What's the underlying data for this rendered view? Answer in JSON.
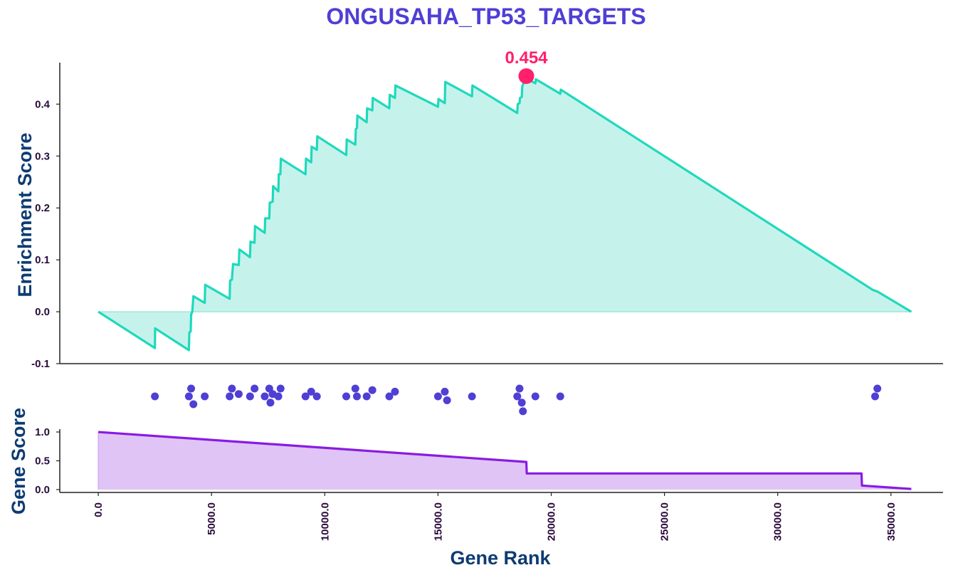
{
  "chart_data": {
    "type": "line",
    "title": "ONGUSAHA_TP53_TARGETS",
    "colors": {
      "title": "#4f3fd4",
      "es_line": "#1fd9bc",
      "es_fill": "#c5f3ec",
      "peak": "#ff1f6a",
      "hits": "#4f3fd4",
      "score_line": "#8a1be0",
      "score_fill": "#e0c4f6",
      "axis": "#222222"
    },
    "enrichment": {
      "ylabel": "Enrichment Score",
      "ylim": [
        -0.1,
        0.48
      ],
      "yticks": [
        "-0.1",
        "0.0",
        "0.1",
        "0.2",
        "0.3",
        "0.4"
      ],
      "points": [
        [
          0,
          0.0
        ],
        [
          2500,
          -0.07
        ],
        [
          2510,
          -0.032
        ],
        [
          4000,
          -0.074
        ],
        [
          4020,
          -0.04
        ],
        [
          4080,
          -0.038
        ],
        [
          4100,
          -0.005
        ],
        [
          4150,
          0.0
        ],
        [
          4200,
          0.03
        ],
        [
          4700,
          0.017
        ],
        [
          4720,
          0.052
        ],
        [
          5800,
          0.025
        ],
        [
          5820,
          0.06
        ],
        [
          5900,
          0.062
        ],
        [
          5950,
          0.092
        ],
        [
          6200,
          0.09
        ],
        [
          6230,
          0.12
        ],
        [
          6700,
          0.105
        ],
        [
          6720,
          0.135
        ],
        [
          6900,
          0.133
        ],
        [
          6920,
          0.165
        ],
        [
          7350,
          0.152
        ],
        [
          7370,
          0.18
        ],
        [
          7550,
          0.18
        ],
        [
          7570,
          0.21
        ],
        [
          7700,
          0.212
        ],
        [
          7720,
          0.242
        ],
        [
          7950,
          0.232
        ],
        [
          7970,
          0.265
        ],
        [
          8040,
          0.265
        ],
        [
          8060,
          0.295
        ],
        [
          9150,
          0.265
        ],
        [
          9170,
          0.295
        ],
        [
          9400,
          0.288
        ],
        [
          9420,
          0.318
        ],
        [
          9650,
          0.312
        ],
        [
          9670,
          0.338
        ],
        [
          10950,
          0.302
        ],
        [
          10970,
          0.332
        ],
        [
          11350,
          0.322
        ],
        [
          11370,
          0.352
        ],
        [
          11420,
          0.354
        ],
        [
          11440,
          0.378
        ],
        [
          11850,
          0.365
        ],
        [
          11870,
          0.392
        ],
        [
          12100,
          0.388
        ],
        [
          12120,
          0.412
        ],
        [
          12850,
          0.392
        ],
        [
          12870,
          0.418
        ],
        [
          13100,
          0.412
        ],
        [
          13120,
          0.436
        ],
        [
          15000,
          0.395
        ],
        [
          15020,
          0.41
        ],
        [
          15300,
          0.402
        ],
        [
          15320,
          0.443
        ],
        [
          16500,
          0.415
        ],
        [
          16520,
          0.436
        ],
        [
          18500,
          0.383
        ],
        [
          18520,
          0.4
        ],
        [
          18600,
          0.402
        ],
        [
          18620,
          0.412
        ],
        [
          18700,
          0.414
        ],
        [
          18720,
          0.434
        ],
        [
          18900,
          0.454
        ],
        [
          19000,
          0.445
        ],
        [
          19020,
          0.447
        ],
        [
          19300,
          0.44
        ],
        [
          19320,
          0.448
        ],
        [
          20400,
          0.42
        ],
        [
          20420,
          0.428
        ],
        [
          34200,
          0.042
        ],
        [
          34400,
          0.039
        ],
        [
          35900,
          0.0
        ]
      ],
      "peak": {
        "x": 18900,
        "y": 0.454,
        "label": "0.454"
      }
    },
    "hits": {
      "positions": [
        [
          2500,
          0
        ],
        [
          4000,
          0
        ],
        [
          4100,
          1
        ],
        [
          4200,
          -1
        ],
        [
          4700,
          0
        ],
        [
          5800,
          0
        ],
        [
          5900,
          1
        ],
        [
          6200,
          0.3
        ],
        [
          6700,
          0
        ],
        [
          6900,
          1
        ],
        [
          7350,
          0
        ],
        [
          7550,
          1
        ],
        [
          7600,
          -0.8
        ],
        [
          7700,
          0.3
        ],
        [
          7950,
          0
        ],
        [
          8050,
          1
        ],
        [
          9150,
          0
        ],
        [
          9400,
          0.6
        ],
        [
          9650,
          0
        ],
        [
          10950,
          0
        ],
        [
          11350,
          1
        ],
        [
          11420,
          0
        ],
        [
          11850,
          0
        ],
        [
          12100,
          0.8
        ],
        [
          12850,
          0
        ],
        [
          13100,
          0.6
        ],
        [
          15000,
          0
        ],
        [
          15300,
          0.6
        ],
        [
          15400,
          -0.5
        ],
        [
          16500,
          0
        ],
        [
          18500,
          0
        ],
        [
          18600,
          1
        ],
        [
          18700,
          -0.8
        ],
        [
          18750,
          -1.9
        ],
        [
          19300,
          0
        ],
        [
          20400,
          0
        ],
        [
          34300,
          0
        ],
        [
          34400,
          1
        ]
      ]
    },
    "score": {
      "ylabel": "Gene Score",
      "ylim": [
        -0.05,
        1.05
      ],
      "yticks": [
        "0.0",
        "0.5",
        "1.0"
      ],
      "points": [
        [
          0,
          1.0
        ],
        [
          18900,
          0.48
        ],
        [
          18920,
          0.28
        ],
        [
          33700,
          0.28
        ],
        [
          33720,
          0.07
        ],
        [
          35900,
          0.01
        ]
      ]
    },
    "xaxis": {
      "xlabel": "Gene Rank",
      "xlim": [
        -1700,
        37300
      ],
      "ticks": [
        0,
        5000,
        10000,
        15000,
        20000,
        25000,
        30000,
        35000
      ],
      "tick_labels": [
        "0.0",
        "5000.0",
        "10000.0",
        "15000.0",
        "20000.0",
        "25000.0",
        "30000.0",
        "35000.0"
      ]
    }
  }
}
